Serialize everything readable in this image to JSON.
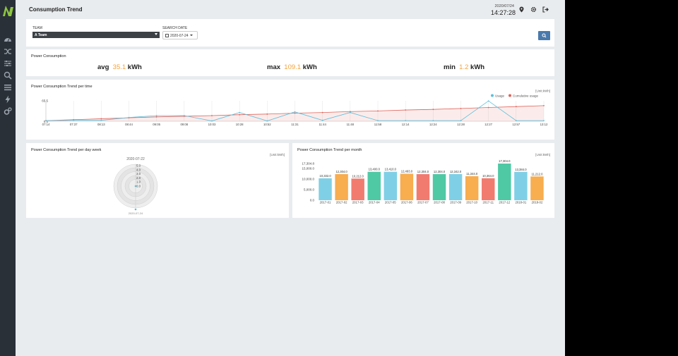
{
  "app": {
    "title": "Consumption Trend",
    "date": "2020/07/24",
    "time": "14:27:28",
    "accent": "#8dc63f",
    "top_icons": [
      "location-pin-icon",
      "settings-icon",
      "logout-icon"
    ]
  },
  "sidebar": {
    "icons": [
      "dashboard-icon",
      "shuffle-icon",
      "sliders-icon",
      "search-icon",
      "list-icon",
      "lightning-icon",
      "cogs-icon"
    ]
  },
  "filters": {
    "team_label": "TEAM",
    "team_value": "A Team",
    "date_label": "SEARCH DATE",
    "date_value": "2020-07-24"
  },
  "power": {
    "title": "Power Consumption",
    "avg_label": "avg",
    "avg_value": "35.1",
    "avg_unit": "kWh",
    "max_label": "max",
    "max_value": "109.1",
    "max_unit": "kWh",
    "min_label": "min",
    "min_value": "1.2",
    "min_unit": "kWh",
    "value_color": "#f5a23a"
  },
  "trend_time": {
    "title": "Power Consumption Trend per time",
    "unit": "[Unit:kWh]",
    "legend_usage": "Usage",
    "legend_cumulative": "Cumulative usage",
    "colors": {
      "usage": "#5bc0de",
      "cumulative": "#e0635a"
    },
    "chart_data": {
      "type": "line",
      "categories": [
        "07:14",
        "07:37",
        "08:13",
        "08:44",
        "09:05",
        "09:08",
        "10:03",
        "10:28",
        "10:52",
        "11:31",
        "11:44",
        "11:48",
        "11:58",
        "12:14",
        "12:24",
        "12:28",
        "12:27",
        "12:57",
        "13:12"
      ],
      "y_ticks": [
        "65.5",
        "0.5"
      ],
      "series": [
        {
          "name": "Usage",
          "values": [
            2,
            3,
            3,
            12,
            18,
            18,
            1,
            28,
            1,
            30,
            3,
            28,
            2,
            2,
            2,
            2,
            65,
            2,
            2
          ]
        },
        {
          "name": "Cumulative usage",
          "values": [
            2,
            5,
            8,
            11,
            14,
            16,
            18,
            21,
            23,
            26,
            28,
            31,
            33,
            36,
            38,
            41,
            44,
            47,
            50
          ]
        }
      ]
    }
  },
  "trend_week": {
    "title": "Power Consumption Trend per day week",
    "unit": "[Unit:kWh]",
    "top_date": "2020-07-22",
    "bottom_date": "2020-07-24",
    "chart_data": {
      "type": "radar",
      "axis_ticks": [
        "5.0",
        "4.0",
        "3.0",
        "2.0",
        "1.0",
        "0.0"
      ],
      "categories": [
        "2020-07-22",
        "2020-07-24"
      ],
      "values": [
        0,
        0
      ]
    }
  },
  "trend_month": {
    "title": "Power Consumption Trend per month",
    "unit": "[Unit:kWh]",
    "chart_data": {
      "type": "bar",
      "ylim": [
        0,
        17304
      ],
      "y_ticks": [
        "17,304.8",
        "15,000.0",
        "10,000.0",
        "5,000.0",
        "0.0"
      ],
      "categories": [
        "2017-01",
        "2017-02",
        "2017-03",
        "2017-04",
        "2017-05",
        "2017-06",
        "2017-07",
        "2017-08",
        "2017-09",
        "2017-10",
        "2017-11",
        "2017-12",
        "2018-01",
        "2018-02"
      ],
      "values": [
        10332,
        12304,
        10212,
        13400,
        13410,
        12493,
        12304,
        12304,
        12342,
        11344,
        10364,
        17304,
        13384,
        11212
      ],
      "labels": [
        "10,332.0",
        "12,304.0",
        "10,212.0",
        "13,400.0",
        "13,410.0",
        "12,493.0",
        "12,304.0",
        "12,304.0",
        "12,342.0",
        "11,344.0",
        "10,364.0",
        "17,304.0",
        "13,384.0",
        "11,212.0"
      ],
      "colors": [
        "#7fd0e6",
        "#f8ad4f",
        "#f27b6f",
        "#4fc9a4",
        "#7fd0e6",
        "#f8ad4f",
        "#f27b6f",
        "#4fc9a4",
        "#7fd0e6",
        "#f8ad4f",
        "#f27b6f",
        "#4fc9a4",
        "#7fd0e6",
        "#f8ad4f"
      ]
    }
  }
}
